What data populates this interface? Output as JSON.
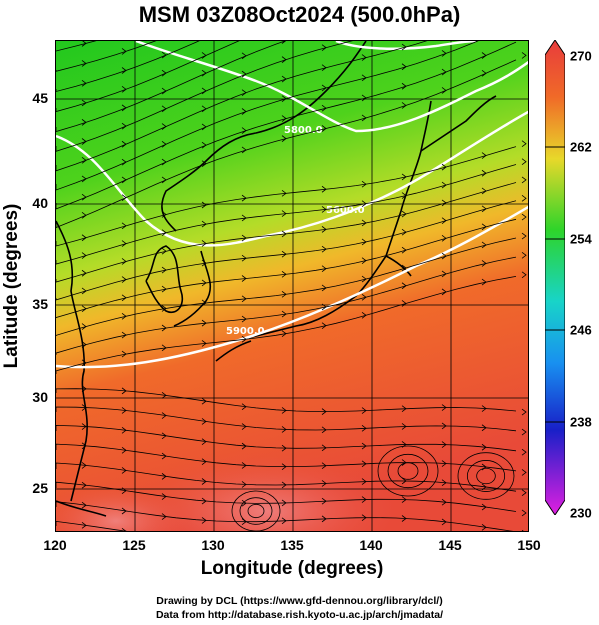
{
  "title": "MSM 03Z08Oct2024 (500.0hPa)",
  "x_axis": {
    "label": "Longitude (degrees)",
    "ticks": [
      "120",
      "125",
      "130",
      "135",
      "140",
      "145",
      "150"
    ],
    "range": [
      120,
      150
    ]
  },
  "y_axis": {
    "label": "Latitude  (degrees)",
    "ticks": [
      "25",
      "30",
      "35",
      "40",
      "45"
    ],
    "range": [
      22.5,
      47.8
    ]
  },
  "colorbar": {
    "labels": [
      "270",
      "262",
      "254",
      "246",
      "238",
      "230"
    ],
    "range": [
      230,
      270
    ],
    "unit_hint": "temperature"
  },
  "contour_labels": [
    "5600.0",
    "5800.0",
    "5900.0"
  ],
  "credits": {
    "line1": "Drawing by DCL (https://www.gfd-dennou.org/library/dcl/)",
    "line2": "Data from http://database.rish.kyoto-u.ac.jp/arch/jmadata/"
  },
  "colors": {
    "cold": "#1fd21f",
    "mid": "#c8dc2a",
    "warm": "#f05a2a",
    "hot": "#e8453c",
    "contour": "#ffffff"
  }
}
